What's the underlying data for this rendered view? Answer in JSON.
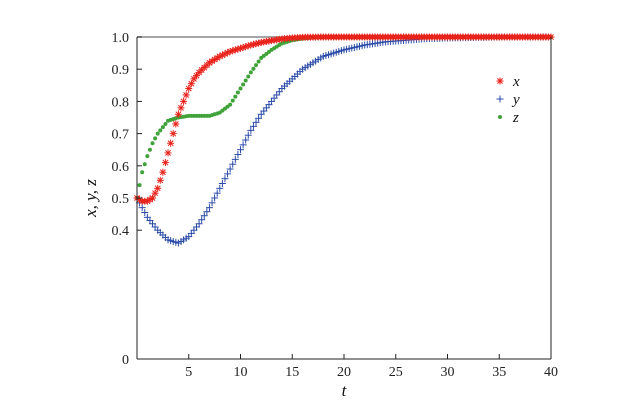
{
  "chart_data": {
    "type": "scatter",
    "title": "",
    "xlabel": "t",
    "ylabel": "x, y, z",
    "xlim": [
      0,
      40
    ],
    "ylim": [
      0,
      1.0
    ],
    "x_ticks": [
      5,
      10,
      15,
      20,
      25,
      30,
      35,
      40
    ],
    "y_ticks": [
      0,
      0.4,
      0.5,
      0.6,
      0.7,
      0.8,
      0.9,
      1.0
    ],
    "y_tick_labels": [
      "0",
      "0.4",
      "0.5",
      "0.6",
      "0.7",
      "0.8",
      "0.9",
      "1.0"
    ],
    "reference_line": {
      "y": 1.0,
      "color": "#888888"
    },
    "grid": false,
    "legend_position": "top-right",
    "series": [
      {
        "name": "x",
        "color": "#e8231b",
        "marker": "asterisk",
        "x": [
          0,
          0.5,
          1,
          1.5,
          2,
          2.5,
          3,
          3.5,
          4,
          4.5,
          5,
          5.5,
          6,
          7,
          8,
          9,
          10,
          11,
          12,
          13,
          14,
          15,
          16,
          18,
          20,
          25,
          30,
          35,
          40
        ],
        "y": [
          0.5,
          0.49,
          0.49,
          0.5,
          0.53,
          0.58,
          0.64,
          0.7,
          0.76,
          0.8,
          0.84,
          0.87,
          0.89,
          0.92,
          0.94,
          0.955,
          0.965,
          0.975,
          0.983,
          0.989,
          0.994,
          0.997,
          0.999,
          1.0,
          1.0,
          1.0,
          1.0,
          1.0,
          1.0
        ]
      },
      {
        "name": "y",
        "color": "#2a4aa8",
        "marker": "plus",
        "x": [
          0,
          1,
          2,
          3,
          4,
          5,
          6,
          7,
          8,
          9,
          10,
          11,
          12,
          13,
          14,
          15,
          16,
          17,
          18,
          20,
          22,
          24,
          26,
          28,
          30,
          35,
          40
        ],
        "y": [
          0.5,
          0.44,
          0.4,
          0.37,
          0.36,
          0.38,
          0.42,
          0.47,
          0.53,
          0.59,
          0.65,
          0.71,
          0.76,
          0.8,
          0.84,
          0.87,
          0.9,
          0.92,
          0.94,
          0.96,
          0.975,
          0.985,
          0.99,
          0.995,
          0.997,
          1.0,
          1.0
        ]
      },
      {
        "name": "z",
        "color": "#3fa33a",
        "marker": "dot",
        "x": [
          0,
          0.5,
          1,
          1.5,
          2,
          2.5,
          3,
          3.5,
          4,
          5,
          6,
          7,
          8,
          9,
          10,
          11,
          12,
          13,
          14,
          15,
          16,
          17,
          18,
          20,
          25,
          30,
          35,
          40
        ],
        "y": [
          0.5,
          0.58,
          0.63,
          0.67,
          0.7,
          0.72,
          0.74,
          0.745,
          0.75,
          0.755,
          0.755,
          0.755,
          0.765,
          0.79,
          0.84,
          0.89,
          0.935,
          0.96,
          0.98,
          0.99,
          0.995,
          0.998,
          1.0,
          1.0,
          1.0,
          1.0,
          1.0,
          1.0
        ]
      }
    ]
  }
}
